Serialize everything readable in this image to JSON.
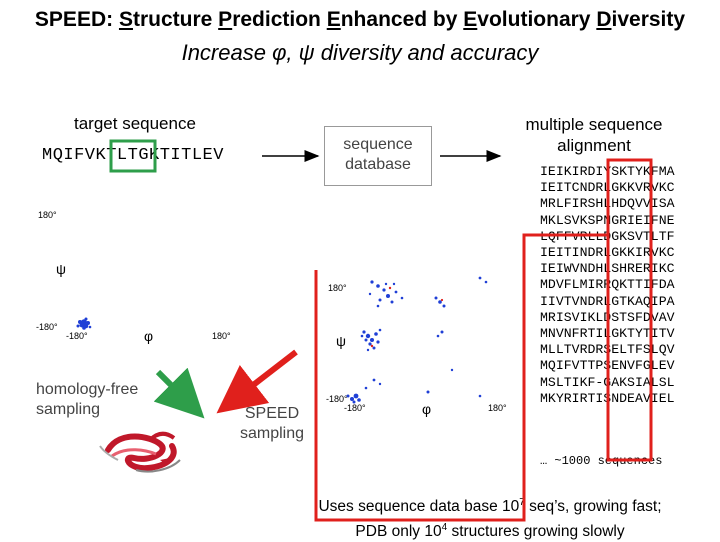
{
  "title": {
    "prefix": "SPEED: ",
    "words": [
      {
        "initial": "S",
        "rest": "tructure"
      },
      {
        "initial": "P",
        "rest": "rediction"
      },
      {
        "initial": "E",
        "rest": "nhanced by"
      },
      {
        "initial": "E",
        "rest": "volutionary"
      },
      {
        "initial": "D",
        "rest": "iversity"
      }
    ]
  },
  "subtitle": "Increase φ, ψ diversity and accuracy",
  "target": {
    "label": "target sequence",
    "sequence": "MQIFVKTLTGKTITLEV"
  },
  "database": {
    "line1": "sequence",
    "line2": "database"
  },
  "msa": {
    "line1": "multiple sequence",
    "line2": "alignment",
    "sequences": [
      "IEIKIRDIYSKTYKFMA",
      "IEITCNDRLGKKVRVKC",
      "MRLFIRSHLHDQVVISA",
      "MKLSVKSPNGRIEIFNE",
      "LQFFVRLLDGKSVTLTF",
      "IEITINDRLGKKIRVKC",
      "IEIWVNDHLSHRERIKC",
      "MDVFLMIRRQKTTIFDA",
      "IIVTVNDRLGTKAQIPA",
      "MRISVIKLDSTSFDVAV",
      "MNVNFRTILGKTYTITV",
      "MLLTVRDRSELTFSLQV",
      "MQIFVTTPSENVFGLEV",
      "MSLTIKF-GAKSIALSL",
      "MKYRIRTISNDEAVIEL"
    ],
    "more": "… ~1000 sequences"
  },
  "plot1": {
    "y_axis": "ψ",
    "x_axis": "φ",
    "y_max": "180°",
    "y_min": "-180°",
    "x_min": "-180°",
    "x_max": "180°"
  },
  "plot2": {
    "y_axis": "ψ",
    "x_axis": "φ",
    "y_max": "180°",
    "y_min": "-180°",
    "x_min": "-180°",
    "x_max": "180°"
  },
  "homology_free": {
    "line1": "homology-free",
    "line2": "sampling"
  },
  "speed_sampling": {
    "line1": "SPEED",
    "line2": "sampling"
  },
  "footer": {
    "line1_a": "Uses sequence data base 10",
    "line1_sup": "7",
    "line1_b": " seq’s, growing fast;",
    "line2_a": "PDB only 10",
    "line2_sup": "4",
    "line2_b": " structures growing slowly"
  },
  "colors": {
    "green": "#2e9e4a",
    "red": "#e0201c",
    "blue": "#1f3fd6",
    "protein_red": "#c0182a"
  }
}
